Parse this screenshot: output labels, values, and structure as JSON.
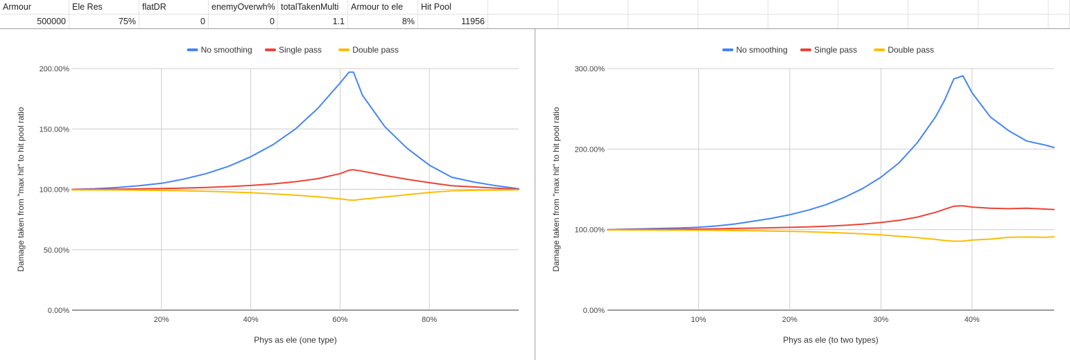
{
  "spreadsheet": {
    "headers": [
      "Armour",
      "Ele Res",
      "flatDR",
      "enemyOverwh%",
      "totalTakenMulti",
      "Armour to ele",
      "Hit Pool"
    ],
    "values": [
      "500000",
      "75%",
      "0",
      "0",
      "1.1",
      "8%",
      "11956"
    ]
  },
  "chart_data": [
    {
      "type": "line",
      "title": "",
      "xlabel": "Phys as ele (one type)",
      "ylabel": "Damage taken from \"max hit\" to hit pool ratio",
      "xlim": [
        0,
        100
      ],
      "ylim": [
        0,
        200
      ],
      "x_ticks": [
        "20%",
        "40%",
        "60%",
        "80%"
      ],
      "y_ticks": [
        "0.00%",
        "50.00%",
        "100.00%",
        "150.00%",
        "200.00%"
      ],
      "legend_position": "top",
      "colors": [
        "#4285f4",
        "#ea4335",
        "#fbbc04"
      ],
      "x": [
        0,
        5,
        10,
        15,
        20,
        25,
        30,
        35,
        40,
        45,
        50,
        55,
        60,
        62,
        63,
        65,
        70,
        75,
        80,
        85,
        90,
        95,
        100
      ],
      "series": [
        {
          "name": "No smoothing",
          "values": [
            100,
            100.5,
            101.5,
            103,
            105,
            108.5,
            113,
            119,
            127,
            137,
            150,
            167,
            188,
            197,
            197,
            178,
            152,
            134,
            120,
            110,
            106,
            103,
            100.5
          ]
        },
        {
          "name": "Single pass",
          "values": [
            100,
            100,
            100.2,
            100.4,
            100.7,
            101.1,
            101.6,
            102.3,
            103.2,
            104.5,
            106.3,
            108.8,
            113,
            115.8,
            116.2,
            115,
            111.5,
            108.3,
            105.5,
            103,
            102,
            101,
            100
          ]
        },
        {
          "name": "Double pass",
          "values": [
            99.5,
            99.5,
            99.4,
            99.3,
            99.1,
            98.8,
            98.4,
            97.9,
            97.2,
            96.3,
            95.2,
            93.8,
            92.2,
            91.2,
            91,
            91.8,
            93.7,
            95.6,
            97.4,
            98.8,
            99.2,
            99.4,
            99.6
          ]
        }
      ]
    },
    {
      "type": "line",
      "title": "",
      "xlabel": "Phys as ele (to two types)",
      "ylabel": "Damage taken from \"max hit\" to hit pool ratio",
      "xlim": [
        0,
        49
      ],
      "ylim": [
        0,
        300
      ],
      "x_ticks": [
        "10%",
        "20%",
        "30%",
        "40%"
      ],
      "y_ticks": [
        "0.00%",
        "100.00%",
        "200.00%",
        "300.00%"
      ],
      "legend_position": "top",
      "colors": [
        "#4285f4",
        "#ea4335",
        "#fbbc04"
      ],
      "x": [
        0,
        4,
        8,
        10,
        12,
        14,
        16,
        18,
        20,
        22,
        24,
        26,
        28,
        30,
        32,
        34,
        36,
        37,
        38,
        39,
        40,
        42,
        44,
        46,
        48,
        49
      ],
      "series": [
        {
          "name": "No smoothing",
          "values": [
            100,
            101,
            102,
            103,
            104.5,
            107,
            110.5,
            114,
            118.5,
            124,
            131,
            140,
            151,
            165,
            183,
            208,
            240,
            261,
            287,
            291,
            270,
            240,
            223,
            210,
            205,
            202
          ]
        },
        {
          "name": "Single pass",
          "values": [
            100,
            100.2,
            100.5,
            100.7,
            101,
            101.5,
            101.9,
            102.3,
            102.8,
            103.4,
            104.3,
            105.3,
            106.8,
            108.8,
            111.5,
            115.5,
            121.5,
            125.3,
            129,
            129.5,
            128,
            126.5,
            126,
            126.5,
            125.5,
            125
          ]
        },
        {
          "name": "Double pass",
          "values": [
            99.5,
            99.4,
            99.3,
            99.2,
            99,
            98.8,
            98.5,
            98.2,
            97.8,
            97.3,
            96.6,
            95.8,
            94.8,
            93.5,
            91.8,
            90,
            87.8,
            86.5,
            85.6,
            85.8,
            87,
            88.2,
            90.5,
            90.8,
            90.5,
            91
          ]
        }
      ]
    }
  ]
}
